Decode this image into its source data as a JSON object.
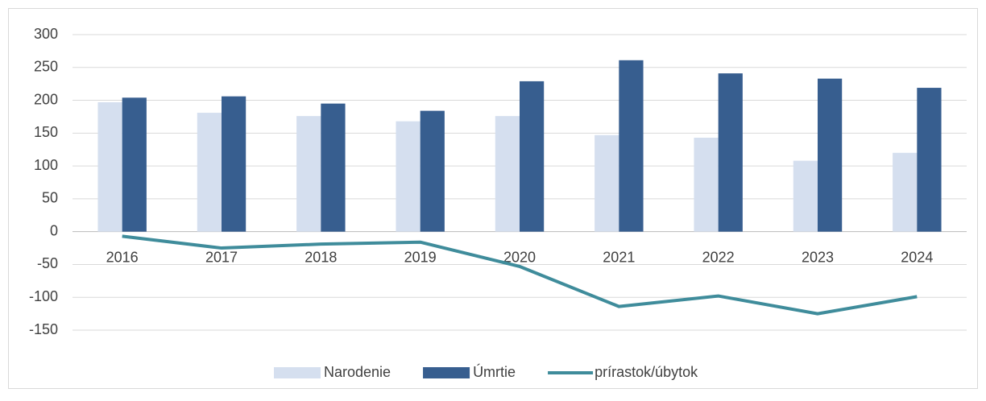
{
  "chart_data": {
    "type": "bar-line",
    "categories": [
      "2016",
      "2017",
      "2018",
      "2019",
      "2020",
      "2021",
      "2022",
      "2023",
      "2024"
    ],
    "series": [
      {
        "name": "Narodenie",
        "type": "bar",
        "color": "#d5dfef",
        "values": [
          197,
          181,
          176,
          168,
          176,
          147,
          143,
          108,
          120
        ]
      },
      {
        "name": "Úmrtie",
        "type": "bar",
        "color": "#375e8f",
        "values": [
          204,
          206,
          195,
          184,
          229,
          261,
          241,
          233,
          219
        ]
      },
      {
        "name": "prírastok/úbytok",
        "type": "line",
        "color": "#3f8c9b",
        "values": [
          -7,
          -25,
          -19,
          -16,
          -53,
          -114,
          -98,
          -125,
          -99
        ]
      }
    ],
    "ylim": [
      -150,
      300
    ],
    "yticks": [
      -150,
      -100,
      -50,
      0,
      50,
      100,
      150,
      200,
      250,
      300
    ],
    "grid": true,
    "legend": "bottom"
  }
}
